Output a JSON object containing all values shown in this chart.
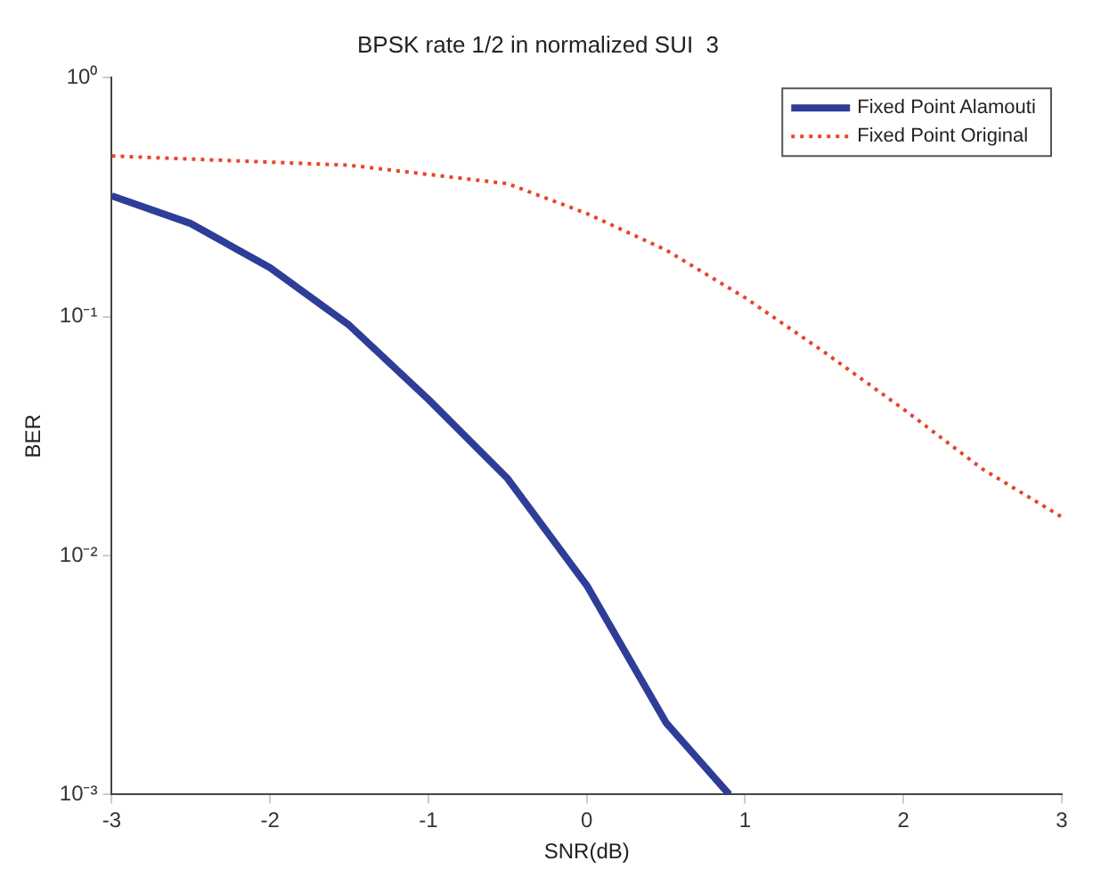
{
  "chart_data": {
    "type": "line",
    "title": "BPSK rate 1/2 in normalized SUI  3",
    "xlabel": "SNR(dB)",
    "ylabel": "BER",
    "log": "y",
    "grid": false,
    "legend": "top right",
    "xlim": [
      -3,
      3
    ],
    "xticks": [
      -3,
      -2,
      -1,
      0,
      1,
      2,
      3
    ],
    "ylim": [
      0.001,
      1
    ],
    "yticks": [
      {
        "value": 0.001,
        "label": "10⁻³"
      },
      {
        "value": 0.01,
        "label": "10⁻²"
      },
      {
        "value": 0.1,
        "label": "10⁻¹"
      },
      {
        "value": 1,
        "label": "10⁰"
      }
    ],
    "series": [
      {
        "name": "Fixed Point Alamouti",
        "color": "#2e3d97",
        "line_style": "solid",
        "x": [
          -3,
          -2.5,
          -2,
          -1.5,
          -1,
          -0.5,
          0,
          0.5,
          0.9
        ],
        "values": [
          0.32,
          0.245,
          0.16,
          0.092,
          0.045,
          0.021,
          0.0075,
          0.002,
          0.001
        ]
      },
      {
        "name": "Fixed Point Original",
        "color": "#e8452a",
        "line_style": "dotted",
        "x": [
          -3,
          -1.5,
          -0.5,
          0,
          0.5,
          1,
          1.5,
          2,
          2.5,
          3
        ],
        "values": [
          0.47,
          0.43,
          0.36,
          0.27,
          0.19,
          0.12,
          0.071,
          0.041,
          0.023,
          0.0145
        ]
      }
    ]
  }
}
